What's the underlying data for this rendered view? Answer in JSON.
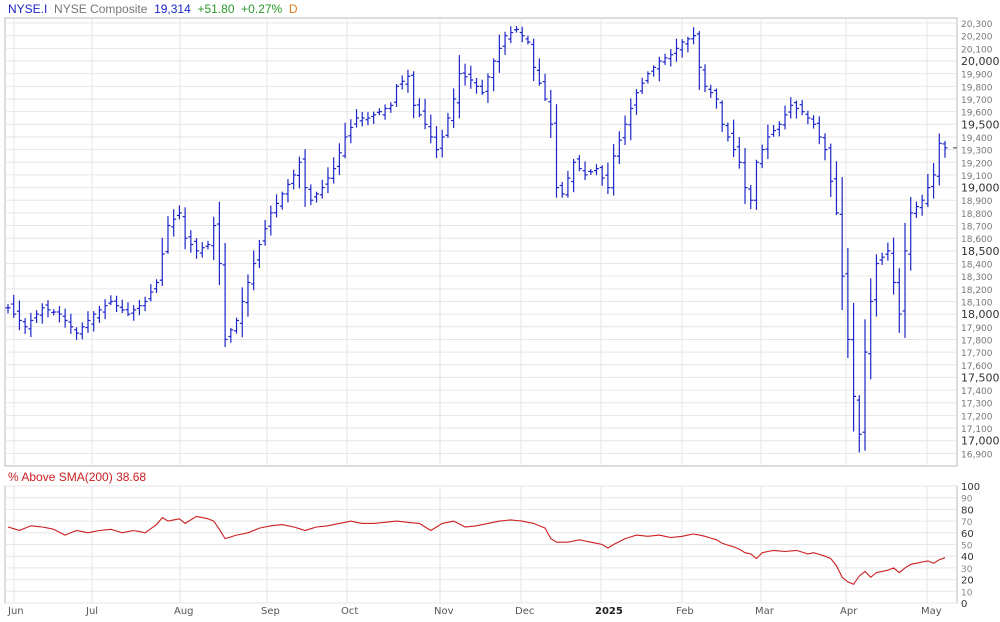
{
  "header": {
    "symbol": "NYSE.I",
    "name": "NYSE Composite",
    "last": "19,314",
    "change": "+51.80",
    "change_pct": "+0.27%",
    "period": "D"
  },
  "indicator": {
    "label": "% Above SMA(200)",
    "value": "38.68"
  },
  "colors": {
    "bars": "#1c25c8",
    "indicator_line": "#cc2020",
    "symbol": "#1c25c8",
    "name": "#777777",
    "last": "#1c25c8",
    "up": "#2a9a2a",
    "period": "#e07a1f",
    "indicator_label": "#cc2020",
    "grid": "#e6e6e6",
    "axis_text": "#666666",
    "border": "#b8b8b8"
  },
  "chart_data": [
    {
      "type": "ohlc",
      "title": "NYSE Composite",
      "x_labels": [
        "Jun",
        "Jul",
        "Aug",
        "Sep",
        "Oct",
        "Nov",
        "Dec",
        "2025",
        "Feb",
        "Mar",
        "Apr",
        "May"
      ],
      "y_ticks": [
        16900,
        17000,
        17100,
        17200,
        17300,
        17400,
        17500,
        17600,
        17700,
        17800,
        17900,
        18000,
        18100,
        18200,
        18300,
        18400,
        18500,
        18600,
        18700,
        18800,
        18900,
        19000,
        19100,
        19200,
        19300,
        19400,
        19500,
        19600,
        19700,
        19800,
        19900,
        20000,
        20100,
        20200,
        20300
      ],
      "ylim": [
        16800,
        20340
      ],
      "grid": true,
      "last_close": 19314,
      "close_by_month_start": [
        [
          "Jun",
          18000
        ],
        [
          "Jul",
          18050
        ],
        [
          "Aug",
          18350
        ],
        [
          "Sep",
          19150
        ],
        [
          "Oct",
          19550
        ],
        [
          "Nov",
          19300
        ],
        [
          "Dec",
          20200
        ],
        [
          "2025",
          19250
        ],
        [
          "Feb",
          20050
        ],
        [
          "Mar",
          19700
        ],
        [
          "Apr",
          19200
        ],
        [
          "May",
          19150
        ]
      ],
      "series_points": [
        [
          0,
          18050
        ],
        [
          3,
          17900
        ],
        [
          6,
          18050
        ],
        [
          9,
          18000
        ],
        [
          12,
          17850
        ],
        [
          15,
          18000
        ],
        [
          18,
          18100
        ],
        [
          21,
          18000
        ],
        [
          24,
          18100
        ],
        [
          26,
          18250
        ],
        [
          28,
          18700
        ],
        [
          30,
          18800
        ],
        [
          31,
          18600
        ],
        [
          33,
          18500
        ],
        [
          35,
          18550
        ],
        [
          36,
          18700
        ],
        [
          37,
          18400
        ],
        [
          38,
          17800
        ],
        [
          40,
          17950
        ],
        [
          42,
          18250
        ],
        [
          44,
          18550
        ],
        [
          46,
          18800
        ],
        [
          48,
          18950
        ],
        [
          50,
          19100
        ],
        [
          51,
          19200
        ],
        [
          52,
          19000
        ],
        [
          53,
          18900
        ],
        [
          55,
          19000
        ],
        [
          57,
          19150
        ],
        [
          59,
          19400
        ],
        [
          61,
          19550
        ],
        [
          63,
          19550
        ],
        [
          65,
          19600
        ],
        [
          67,
          19650
        ],
        [
          68,
          19800
        ],
        [
          70,
          19880
        ],
        [
          71,
          19650
        ],
        [
          73,
          19500
        ],
        [
          75,
          19300
        ],
        [
          76,
          19400
        ],
        [
          78,
          19700
        ],
        [
          79,
          19900
        ],
        [
          81,
          19850
        ],
        [
          83,
          19750
        ],
        [
          85,
          20000
        ],
        [
          87,
          20200
        ],
        [
          89,
          20250
        ],
        [
          91,
          20150
        ],
        [
          92,
          19950
        ],
        [
          94,
          19700
        ],
        [
          95,
          19500
        ],
        [
          96,
          19000
        ],
        [
          97,
          18950
        ],
        [
          99,
          19200
        ],
        [
          101,
          19100
        ],
        [
          103,
          19150
        ],
        [
          105,
          19000
        ],
        [
          106,
          19250
        ],
        [
          108,
          19500
        ],
        [
          110,
          19750
        ],
        [
          112,
          19900
        ],
        [
          114,
          20000
        ],
        [
          116,
          20050
        ],
        [
          118,
          20150
        ],
        [
          120,
          20200
        ],
        [
          121,
          19950
        ],
        [
          122,
          19800
        ],
        [
          124,
          19700
        ],
        [
          125,
          19500
        ],
        [
          127,
          19300
        ],
        [
          128,
          19200
        ],
        [
          129,
          19000
        ],
        [
          130,
          18900
        ],
        [
          131,
          19200
        ],
        [
          133,
          19400
        ],
        [
          135,
          19500
        ],
        [
          137,
          19650
        ],
        [
          139,
          19600
        ],
        [
          141,
          19500
        ],
        [
          143,
          19300
        ],
        [
          145,
          18800
        ],
        [
          146,
          18300
        ],
        [
          147,
          17800
        ],
        [
          148,
          17350
        ],
        [
          149,
          17050
        ],
        [
          150,
          17700
        ],
        [
          151,
          18100
        ],
        [
          152,
          18400
        ],
        [
          154,
          18500
        ],
        [
          155,
          18250
        ],
        [
          156,
          18000
        ],
        [
          157,
          18500
        ],
        [
          158,
          18800
        ],
        [
          160,
          18900
        ],
        [
          161,
          19000
        ],
        [
          162,
          19100
        ],
        [
          163,
          19350
        ],
        [
          164,
          19314
        ]
      ]
    },
    {
      "type": "line",
      "title": "% Above SMA(200)",
      "last_value": 38.68,
      "x_labels": [
        "Jun",
        "Jul",
        "Aug",
        "Sep",
        "Oct",
        "Nov",
        "Dec",
        "2025",
        "Feb",
        "Mar",
        "Apr",
        "May"
      ],
      "y_ticks": [
        0,
        10,
        20,
        30,
        40,
        50,
        60,
        70,
        80,
        90,
        100
      ],
      "y_labeled": [
        0,
        20,
        40,
        60,
        80,
        100
      ],
      "ylim": [
        0,
        100
      ],
      "grid": true,
      "series_points": [
        [
          0,
          65
        ],
        [
          2,
          62
        ],
        [
          4,
          66
        ],
        [
          6,
          65
        ],
        [
          8,
          63
        ],
        [
          10,
          58
        ],
        [
          12,
          62
        ],
        [
          14,
          60
        ],
        [
          16,
          62
        ],
        [
          18,
          63
        ],
        [
          20,
          60
        ],
        [
          22,
          62
        ],
        [
          24,
          60
        ],
        [
          26,
          67
        ],
        [
          27,
          73
        ],
        [
          28,
          70
        ],
        [
          30,
          72
        ],
        [
          31,
          68
        ],
        [
          32,
          71
        ],
        [
          33,
          74
        ],
        [
          35,
          72
        ],
        [
          36,
          70
        ],
        [
          37,
          63
        ],
        [
          38,
          55
        ],
        [
          40,
          58
        ],
        [
          42,
          60
        ],
        [
          44,
          64
        ],
        [
          46,
          66
        ],
        [
          48,
          67
        ],
        [
          50,
          65
        ],
        [
          52,
          62
        ],
        [
          54,
          65
        ],
        [
          56,
          66
        ],
        [
          58,
          68
        ],
        [
          60,
          70
        ],
        [
          62,
          68
        ],
        [
          64,
          68
        ],
        [
          66,
          69
        ],
        [
          68,
          70
        ],
        [
          70,
          69
        ],
        [
          72,
          68
        ],
        [
          73,
          65
        ],
        [
          74,
          62
        ],
        [
          76,
          68
        ],
        [
          78,
          70
        ],
        [
          80,
          65
        ],
        [
          82,
          66
        ],
        [
          84,
          68
        ],
        [
          86,
          70
        ],
        [
          88,
          71
        ],
        [
          90,
          70
        ],
        [
          92,
          68
        ],
        [
          94,
          64
        ],
        [
          95,
          55
        ],
        [
          96,
          52
        ],
        [
          98,
          52
        ],
        [
          100,
          54
        ],
        [
          102,
          52
        ],
        [
          104,
          50
        ],
        [
          105,
          47
        ],
        [
          106,
          50
        ],
        [
          108,
          55
        ],
        [
          110,
          58
        ],
        [
          112,
          57
        ],
        [
          114,
          58
        ],
        [
          116,
          56
        ],
        [
          118,
          57
        ],
        [
          120,
          59
        ],
        [
          121,
          58
        ],
        [
          122,
          57
        ],
        [
          124,
          54
        ],
        [
          125,
          51
        ],
        [
          127,
          48
        ],
        [
          128,
          46
        ],
        [
          129,
          43
        ],
        [
          130,
          42
        ],
        [
          131,
          38
        ],
        [
          132,
          43
        ],
        [
          134,
          45
        ],
        [
          136,
          44
        ],
        [
          138,
          45
        ],
        [
          140,
          42
        ],
        [
          141,
          43
        ],
        [
          143,
          40
        ],
        [
          144,
          38
        ],
        [
          145,
          32
        ],
        [
          146,
          22
        ],
        [
          147,
          18
        ],
        [
          148,
          16
        ],
        [
          149,
          23
        ],
        [
          150,
          27
        ],
        [
          151,
          22
        ],
        [
          152,
          26
        ],
        [
          154,
          28
        ],
        [
          155,
          30
        ],
        [
          156,
          26
        ],
        [
          157,
          30
        ],
        [
          158,
          33
        ],
        [
          160,
          35
        ],
        [
          161,
          36
        ],
        [
          162,
          34
        ],
        [
          163,
          37
        ],
        [
          164,
          38.68
        ]
      ]
    }
  ]
}
